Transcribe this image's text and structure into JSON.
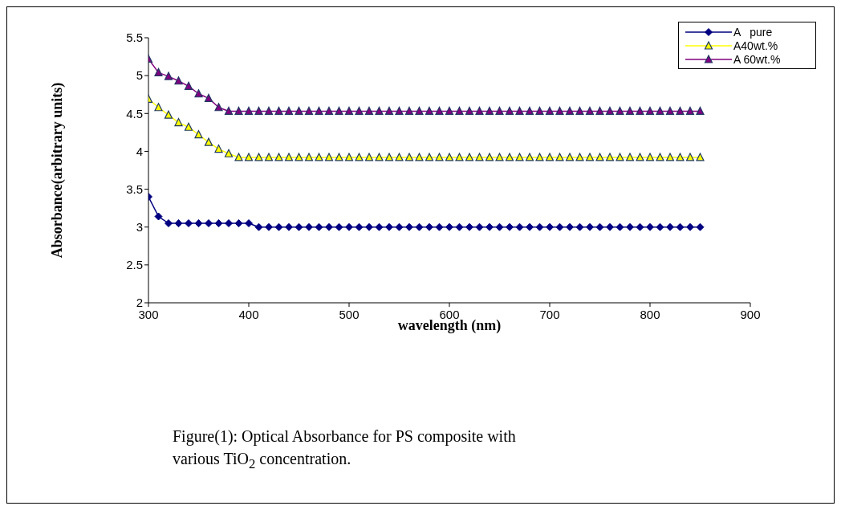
{
  "chart_data": {
    "type": "line",
    "xlabel": "wavelength (nm)",
    "ylabel": "Absorbance(arbitrary units)",
    "annotations": [
      "Figure(1): Optical Absorbance for PS composite with various TiO$_{2}$ concentration."
    ],
    "x": [
      300,
      310,
      320,
      330,
      340,
      350,
      360,
      370,
      380,
      390,
      400,
      410,
      420,
      430,
      440,
      450,
      460,
      470,
      480,
      490,
      500,
      510,
      520,
      530,
      540,
      550,
      560,
      570,
      580,
      590,
      600,
      610,
      620,
      630,
      640,
      650,
      660,
      670,
      680,
      690,
      700,
      710,
      720,
      730,
      740,
      750,
      760,
      770,
      780,
      790,
      800,
      810,
      820,
      830,
      840,
      850
    ],
    "series": [
      {
        "name": "A   pure",
        "color": "#000080",
        "marker": "diamond",
        "values": [
          3.4,
          3.14,
          3.05,
          3.05,
          3.05,
          3.05,
          3.05,
          3.05,
          3.05,
          3.05,
          3.05,
          3.0,
          3.0,
          3.0,
          3.0,
          3.0,
          3.0,
          3.0,
          3.0,
          3.0,
          3.0,
          3.0,
          3.0,
          3.0,
          3.0,
          3.0,
          3.0,
          3.0,
          3.0,
          3.0,
          3.0,
          3.0,
          3.0,
          3.0,
          3.0,
          3.0,
          3.0,
          3.0,
          3.0,
          3.0,
          3.0,
          3.0,
          3.0,
          3.0,
          3.0,
          3.0,
          3.0,
          3.0,
          3.0,
          3.0,
          3.0,
          3.0,
          3.0,
          3.0,
          3.0,
          3.0
        ]
      },
      {
        "name": "A40wt.%",
        "color": "#ffff00",
        "marker": "triangle",
        "values": [
          4.69,
          4.58,
          4.48,
          4.38,
          4.32,
          4.22,
          4.12,
          4.03,
          3.97,
          3.92,
          3.92,
          3.92,
          3.92,
          3.92,
          3.92,
          3.92,
          3.92,
          3.92,
          3.92,
          3.92,
          3.92,
          3.92,
          3.92,
          3.92,
          3.92,
          3.92,
          3.92,
          3.92,
          3.92,
          3.92,
          3.92,
          3.92,
          3.92,
          3.92,
          3.92,
          3.92,
          3.92,
          3.92,
          3.92,
          3.92,
          3.92,
          3.92,
          3.92,
          3.92,
          3.92,
          3.92,
          3.92,
          3.92,
          3.92,
          3.92,
          3.92,
          3.92,
          3.92,
          3.92,
          3.92,
          3.92
        ]
      },
      {
        "name": "A 60wt.%",
        "color": "#800080",
        "marker": "triangle",
        "values": [
          5.22,
          5.04,
          4.99,
          4.93,
          4.86,
          4.76,
          4.7,
          4.58,
          4.53,
          4.53,
          4.53,
          4.53,
          4.53,
          4.53,
          4.53,
          4.53,
          4.53,
          4.53,
          4.53,
          4.53,
          4.53,
          4.53,
          4.53,
          4.53,
          4.53,
          4.53,
          4.53,
          4.53,
          4.53,
          4.53,
          4.53,
          4.53,
          4.53,
          4.53,
          4.53,
          4.53,
          4.53,
          4.53,
          4.53,
          4.53,
          4.53,
          4.53,
          4.53,
          4.53,
          4.53,
          4.53,
          4.53,
          4.53,
          4.53,
          4.53,
          4.53,
          4.53,
          4.53,
          4.53,
          4.53,
          4.53
        ]
      }
    ],
    "xlim": [
      300,
      900
    ],
    "xticks": [
      300,
      400,
      500,
      600,
      700,
      800,
      900
    ],
    "ylim": [
      2,
      5.5
    ],
    "yticks": [
      2,
      2.5,
      3,
      3.5,
      4,
      4.5,
      5,
      5.5
    ],
    "grid": false,
    "legend": "top right"
  }
}
